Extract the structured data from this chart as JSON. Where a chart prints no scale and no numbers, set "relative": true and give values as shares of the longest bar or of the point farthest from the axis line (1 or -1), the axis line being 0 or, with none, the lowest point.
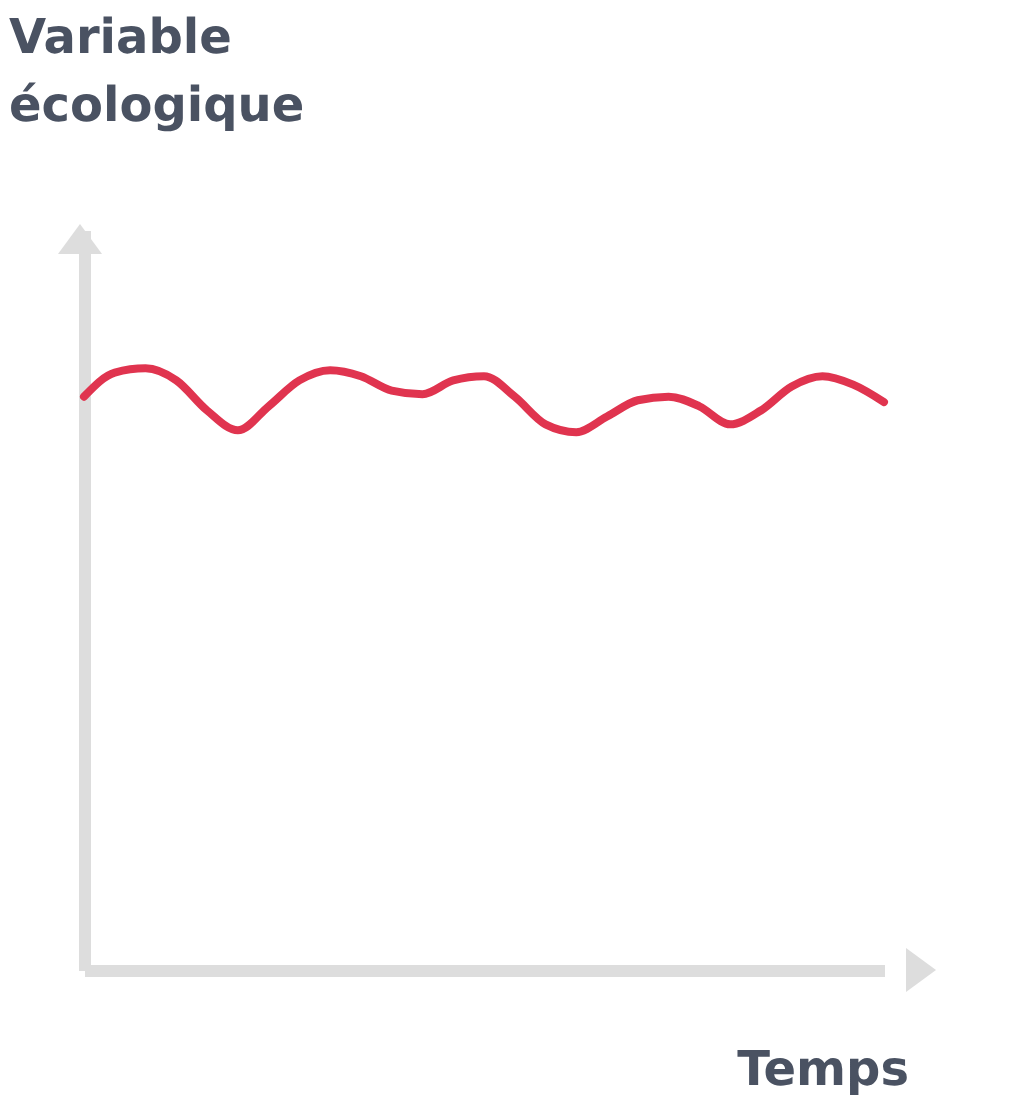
{
  "chart_data": {
    "type": "line",
    "relative": true,
    "ylabel": "Variable écologique",
    "xlabel": "Temps",
    "categories": [
      null,
      null,
      null,
      null,
      null,
      null,
      null,
      null,
      null,
      null,
      null,
      null,
      null,
      null,
      null,
      null,
      null,
      null,
      null,
      null,
      null,
      null,
      null,
      null,
      null,
      null,
      null
    ],
    "series": [
      {
        "color": "#e0344f",
        "values": [
          0.953,
          0.993,
          1,
          0.98,
          0.93,
          0.897,
          0.937,
          0.98,
          0.997,
          0.987,
          0.963,
          0.957,
          0.98,
          0.987,
          0.953,
          0.907,
          0.894,
          0.92,
          0.947,
          0.953,
          0.937,
          0.907,
          0.93,
          0.97,
          0.987,
          0.973,
          0.944
        ]
      }
    ]
  }
}
